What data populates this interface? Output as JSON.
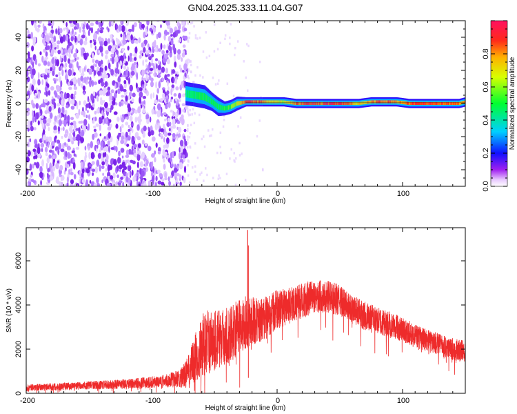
{
  "chart_data": [
    {
      "type": "heatmap",
      "title": "GN04.2025.333.11.04.G07",
      "xlabel": "Height of straight line (km)",
      "ylabel": "Frequency (Hz)",
      "xlim": [
        -200,
        150
      ],
      "ylim": [
        -50,
        50
      ],
      "xticks": [
        -200,
        -100,
        0,
        100
      ],
      "xtick_labels": [
        "-200",
        "-100",
        "0",
        "100"
      ],
      "yticks": [
        -40,
        -20,
        0,
        20,
        40
      ],
      "ytick_labels": [
        "-40",
        "-20",
        "0",
        "20",
        "40"
      ],
      "colorbar": {
        "label": "Normalized spectral amplitude",
        "range": [
          0,
          1
        ],
        "ticks": [
          0.0,
          0.2,
          0.4,
          0.6,
          0.8
        ],
        "tick_labels": [
          "0.0",
          "0.2",
          "0.4",
          "0.6",
          "0.8"
        ]
      },
      "noise_region_x": [
        -200,
        -72
      ],
      "ridge": {
        "x": [
          -73,
          -65,
          -58,
          -52,
          -47,
          -42,
          -37,
          -32,
          -25,
          -15,
          -5,
          5,
          15,
          25,
          35,
          45,
          55,
          65,
          75,
          85,
          95,
          105,
          115,
          125,
          135,
          145,
          150
        ],
        "freq": [
          6,
          5,
          4,
          1,
          -2,
          -3,
          -2,
          0,
          1,
          1,
          1,
          1,
          0,
          0,
          0,
          0,
          0,
          0,
          1,
          1,
          1,
          0,
          0,
          0,
          0,
          0,
          1
        ],
        "amp": [
          0.45,
          0.5,
          0.5,
          0.5,
          0.5,
          0.55,
          0.6,
          0.7,
          0.9,
          0.9,
          0.75,
          0.7,
          0.85,
          0.95,
          0.9,
          0.95,
          0.9,
          0.75,
          0.85,
          0.9,
          0.8,
          0.9,
          0.95,
          0.95,
          0.9,
          0.9,
          0.8
        ],
        "width": [
          5,
          5,
          5,
          4,
          4,
          3,
          3,
          3,
          2,
          2,
          2,
          2,
          2,
          2,
          2,
          2,
          2,
          2,
          2,
          2,
          2,
          2,
          2,
          2,
          2,
          2,
          2
        ]
      }
    },
    {
      "type": "line",
      "xlabel": "Height of straight line (km)",
      "ylabel": "SNR (10 * v/v)",
      "xlim": [
        -200,
        150
      ],
      "ylim": [
        0,
        7500
      ],
      "xticks": [
        -200,
        -100,
        0,
        100
      ],
      "xtick_labels": [
        "-200",
        "-100",
        "0",
        "100"
      ],
      "yticks": [
        0,
        2000,
        4000,
        6000
      ],
      "ytick_labels": [
        "0",
        "2000",
        "4000",
        "6000"
      ],
      "color": "#ee2b2b",
      "envelope": {
        "x": [
          -200,
          -160,
          -120,
          -100,
          -90,
          -80,
          -75,
          -70,
          -65,
          -60,
          -55,
          -50,
          -45,
          -40,
          -35,
          -30,
          -25,
          -20,
          -15,
          -10,
          -5,
          0,
          10,
          20,
          30,
          40,
          50,
          60,
          70,
          80,
          90,
          100,
          110,
          120,
          130,
          140,
          150
        ],
        "mean": [
          250,
          330,
          420,
          500,
          560,
          650,
          750,
          1000,
          1600,
          2200,
          2300,
          2400,
          2500,
          2600,
          2800,
          3000,
          3200,
          3300,
          3300,
          3400,
          3600,
          3800,
          4000,
          4200,
          4400,
          4400,
          4200,
          3800,
          3500,
          3300,
          3100,
          2900,
          2600,
          2400,
          2200,
          2000,
          1900
        ],
        "amp": [
          150,
          180,
          220,
          260,
          300,
          380,
          500,
          800,
          1200,
          1400,
          1500,
          1400,
          1300,
          1300,
          1300,
          1250,
          1200,
          1100,
          1000,
          1000,
          950,
          900,
          850,
          800,
          750,
          750,
          700,
          650,
          650,
          600,
          600,
          550,
          550,
          500,
          500,
          500,
          500
        ]
      },
      "annotations": [
        {
          "x": -23.5,
          "y": 7400,
          "note": "peak spike"
        }
      ]
    }
  ]
}
